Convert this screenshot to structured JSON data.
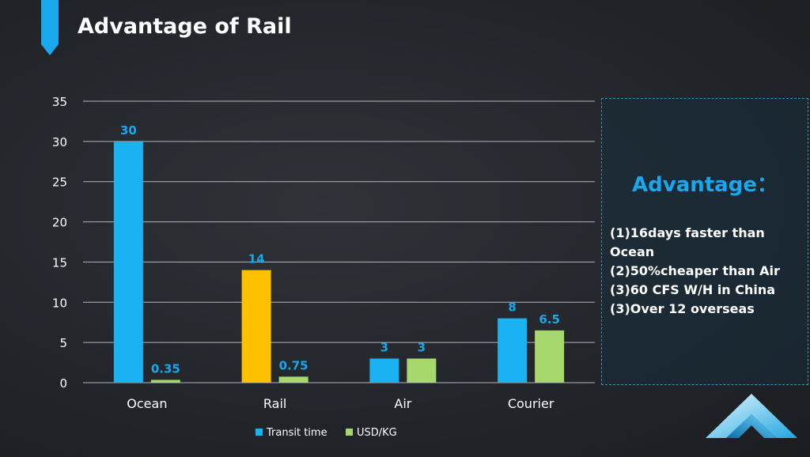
{
  "title": "Advantage of Rail",
  "advantage_panel": {
    "heading": "Advantage：",
    "items": [
      "(1)16days faster than Ocean",
      "(2)50%cheaper than Air",
      "(3)60 CFS W/H in China",
      "(3)Over 12 overseas"
    ]
  },
  "colors": {
    "transit_time": "#1ab2f2",
    "usd_kg": "#a7d86e",
    "rail_highlight": "#ffc000",
    "data_label": "#19a7ee",
    "accent": "#19a7ee"
  },
  "chart_data": {
    "type": "bar",
    "categories": [
      "Ocean",
      "Rail",
      "Air",
      "Courier"
    ],
    "series": [
      {
        "name": "Transit time",
        "values": [
          30,
          14,
          3,
          8
        ],
        "labels": [
          "30",
          "14",
          "3",
          "8"
        ]
      },
      {
        "name": "USD/KG",
        "values": [
          0.35,
          0.75,
          3,
          6.5
        ],
        "labels": [
          "0.35",
          "0.75",
          "3",
          "6.5"
        ]
      }
    ],
    "highlight": {
      "series": "Transit time",
      "category": "Rail",
      "color": "#ffc000"
    },
    "ylim": [
      0,
      35
    ],
    "yticks": [
      "0",
      "5",
      "10",
      "15",
      "20",
      "25",
      "30",
      "35"
    ],
    "grid": true,
    "legend_position": "bottom",
    "xlabel": "",
    "ylabel": ""
  }
}
